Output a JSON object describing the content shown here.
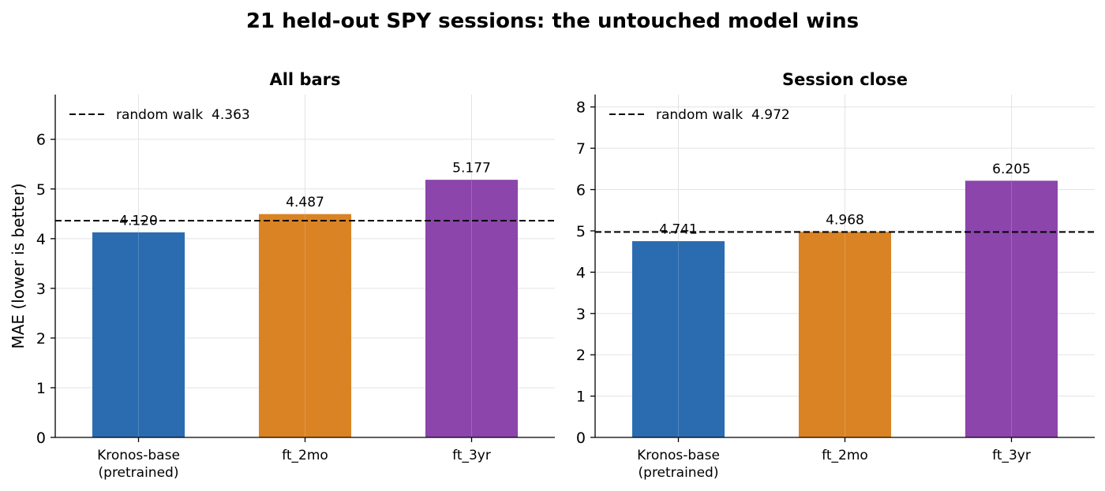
{
  "title": "21 held-out SPY sessions: the untouched model wins",
  "colors": {
    "Kronos-base": "#2b6cb0",
    "ft_2mo": "#d98324",
    "ft_3yr": "#8b45ab",
    "reference": "#000000"
  },
  "chart_data": [
    {
      "type": "bar",
      "title": "All bars",
      "ylabel": "MAE (lower is better)",
      "categories": [
        "Kronos-base\n(pretrained)",
        "ft_2mo",
        "ft_3yr"
      ],
      "values": [
        4.12,
        4.487,
        5.177
      ],
      "value_labels": [
        "4.120",
        "4.487",
        "5.177"
      ],
      "ylim": [
        0,
        6.9
      ],
      "yticks": [
        0,
        1,
        2,
        3,
        4,
        5,
        6
      ],
      "reference_line": {
        "label": "random walk  4.363",
        "value": 4.363,
        "style": "dashed"
      },
      "legend": "top-left",
      "grid": true
    },
    {
      "type": "bar",
      "title": "Session close",
      "ylabel": "",
      "categories": [
        "Kronos-base\n(pretrained)",
        "ft_2mo",
        "ft_3yr"
      ],
      "values": [
        4.741,
        4.968,
        6.205
      ],
      "value_labels": [
        "4.741",
        "4.968",
        "6.205"
      ],
      "ylim": [
        0,
        8.3
      ],
      "yticks": [
        0,
        1,
        2,
        3,
        4,
        5,
        6,
        7,
        8
      ],
      "reference_line": {
        "label": "random walk  4.972",
        "value": 4.972,
        "style": "dashed"
      },
      "legend": "top-left",
      "grid": true
    }
  ]
}
